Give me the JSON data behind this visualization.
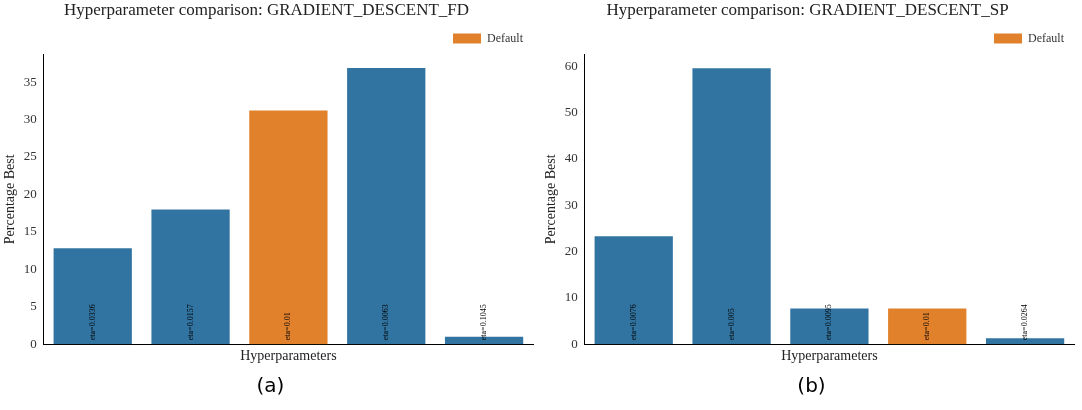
{
  "chart_data": [
    {
      "type": "bar",
      "title": "Hyperparameter comparison: GRADIENT_DESCENT_FD",
      "xlabel": "Hyperparameters",
      "ylabel": "Percentage Best",
      "categories": [
        "eta=0.0336",
        "eta=0.0157",
        "eta=0.01",
        "eta=0.0063",
        "eta=0.1045"
      ],
      "series": [
        {
          "color": "#3274a1",
          "values": [
            12.8,
            18.0,
            null,
            36.9,
            1.0
          ]
        },
        {
          "name": "Default",
          "color": "#e1812c",
          "values": [
            null,
            null,
            31.2,
            null,
            null
          ]
        }
      ],
      "ylim": [
        0,
        38.7
      ],
      "yticks": [
        0,
        5,
        10,
        15,
        20,
        25,
        30,
        35
      ],
      "grid": false,
      "legend": "top right",
      "annotations": [
        "(a)"
      ]
    },
    {
      "type": "bar",
      "title": "Hyperparameter comparison: GRADIENT_DESCENT_SP",
      "xlabel": "Hyperparameters",
      "ylabel": "Percentage Best",
      "categories": [
        "eta=0.0076",
        "eta=0.005",
        "eta=0.0095",
        "eta=0.01",
        "eta=0.0264"
      ],
      "series": [
        {
          "color": "#3274a1",
          "values": [
            23.3,
            59.6,
            7.7,
            null,
            1.3
          ]
        },
        {
          "name": "Default",
          "color": "#e1812c",
          "values": [
            null,
            null,
            null,
            7.7,
            null
          ]
        }
      ],
      "ylim": [
        0,
        62.6
      ],
      "yticks": [
        0,
        10,
        20,
        30,
        40,
        50,
        60
      ],
      "grid": false,
      "legend": "top right",
      "annotations": [
        "(b)"
      ]
    }
  ]
}
